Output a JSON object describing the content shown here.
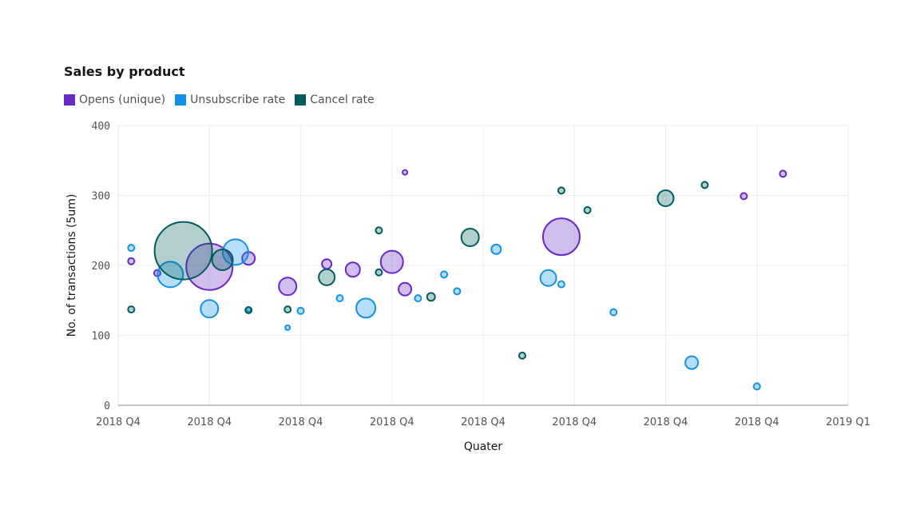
{
  "chart_data": {
    "type": "scatter",
    "subtype": "bubble",
    "title": "Sales by product",
    "xlabel": "Quater",
    "ylabel": "No. of transactions (5um)",
    "x_scale": "time",
    "xlim": [
      "2018-11-11",
      "2019-01-06"
    ],
    "ylim": [
      0,
      400
    ],
    "y_ticks": [
      0,
      100,
      200,
      300,
      400
    ],
    "x_ticks": [
      {
        "date": "2018-11-11",
        "label": "2018 Q4"
      },
      {
        "date": "2018-11-18",
        "label": "2018 Q4"
      },
      {
        "date": "2018-11-25",
        "label": "2018 Q4"
      },
      {
        "date": "2018-12-02",
        "label": "2018 Q4"
      },
      {
        "date": "2018-12-09",
        "label": "2018 Q4"
      },
      {
        "date": "2018-12-16",
        "label": "2018 Q4"
      },
      {
        "date": "2018-12-23",
        "label": "2018 Q4"
      },
      {
        "date": "2018-12-30",
        "label": "2018 Q4"
      },
      {
        "date": "2019-01-06",
        "label": "2019 Q1"
      }
    ],
    "grid": true,
    "legend_position": "top-left",
    "series": [
      {
        "name": "Opens (unique)",
        "color": "#6929c4",
        "points": [
          {
            "x": "2018-11-12",
            "y": 206,
            "size": 16
          },
          {
            "x": "2018-11-14",
            "y": 189,
            "size": 16
          },
          {
            "x": "2018-11-18",
            "y": 198,
            "size": 841
          },
          {
            "x": "2018-11-21",
            "y": 210,
            "size": 64
          },
          {
            "x": "2018-11-24",
            "y": 170,
            "size": 121
          },
          {
            "x": "2018-11-27",
            "y": 202,
            "size": 36
          },
          {
            "x": "2018-11-29",
            "y": 194,
            "size": 81
          },
          {
            "x": "2018-12-02",
            "y": 205,
            "size": 196
          },
          {
            "x": "2018-12-03",
            "y": 333,
            "size": 9
          },
          {
            "x": "2018-12-03",
            "y": 166,
            "size": 64
          },
          {
            "x": "2018-12-15",
            "y": 241,
            "size": 529
          },
          {
            "x": "2018-12-29",
            "y": 299,
            "size": 16
          },
          {
            "x": "2019-01-01",
            "y": 331,
            "size": 16
          }
        ]
      },
      {
        "name": "Unsubscribe rate",
        "color": "#1192e8",
        "points": [
          {
            "x": "2018-11-12",
            "y": 225,
            "size": 16
          },
          {
            "x": "2018-11-15",
            "y": 187,
            "size": 256
          },
          {
            "x": "2018-11-18",
            "y": 138,
            "size": 121
          },
          {
            "x": "2018-11-20",
            "y": 219,
            "size": 256
          },
          {
            "x": "2018-11-21",
            "y": 137,
            "size": 9
          },
          {
            "x": "2018-11-24",
            "y": 111,
            "size": 9
          },
          {
            "x": "2018-11-25",
            "y": 135,
            "size": 16
          },
          {
            "x": "2018-11-28",
            "y": 153,
            "size": 16
          },
          {
            "x": "2018-11-30",
            "y": 139,
            "size": 144
          },
          {
            "x": "2018-12-04",
            "y": 153,
            "size": 16
          },
          {
            "x": "2018-12-06",
            "y": 187,
            "size": 16
          },
          {
            "x": "2018-12-07",
            "y": 163,
            "size": 16
          },
          {
            "x": "2018-12-10",
            "y": 223,
            "size": 36
          },
          {
            "x": "2018-12-14",
            "y": 182,
            "size": 100
          },
          {
            "x": "2018-12-15",
            "y": 173,
            "size": 16
          },
          {
            "x": "2018-12-19",
            "y": 133,
            "size": 16
          },
          {
            "x": "2018-12-25",
            "y": 61,
            "size": 64
          },
          {
            "x": "2018-12-30",
            "y": 27,
            "size": 16
          }
        ]
      },
      {
        "name": "Cancel rate",
        "color": "#005d5d",
        "points": [
          {
            "x": "2018-11-12",
            "y": 137,
            "size": 16
          },
          {
            "x": "2018-11-16",
            "y": 221,
            "size": 1296
          },
          {
            "x": "2018-11-19",
            "y": 208,
            "size": 169
          },
          {
            "x": "2018-11-21",
            "y": 136,
            "size": 16
          },
          {
            "x": "2018-11-24",
            "y": 137,
            "size": 16
          },
          {
            "x": "2018-11-27",
            "y": 183,
            "size": 100
          },
          {
            "x": "2018-12-01",
            "y": 250,
            "size": 16
          },
          {
            "x": "2018-12-01",
            "y": 190,
            "size": 16
          },
          {
            "x": "2018-12-05",
            "y": 155,
            "size": 25
          },
          {
            "x": "2018-12-08",
            "y": 240,
            "size": 121
          },
          {
            "x": "2018-12-12",
            "y": 71,
            "size": 16
          },
          {
            "x": "2018-12-15",
            "y": 307,
            "size": 16
          },
          {
            "x": "2018-12-17",
            "y": 279,
            "size": 16
          },
          {
            "x": "2018-12-23",
            "y": 296,
            "size": 100
          },
          {
            "x": "2018-12-26",
            "y": 315,
            "size": 16
          }
        ]
      }
    ]
  }
}
